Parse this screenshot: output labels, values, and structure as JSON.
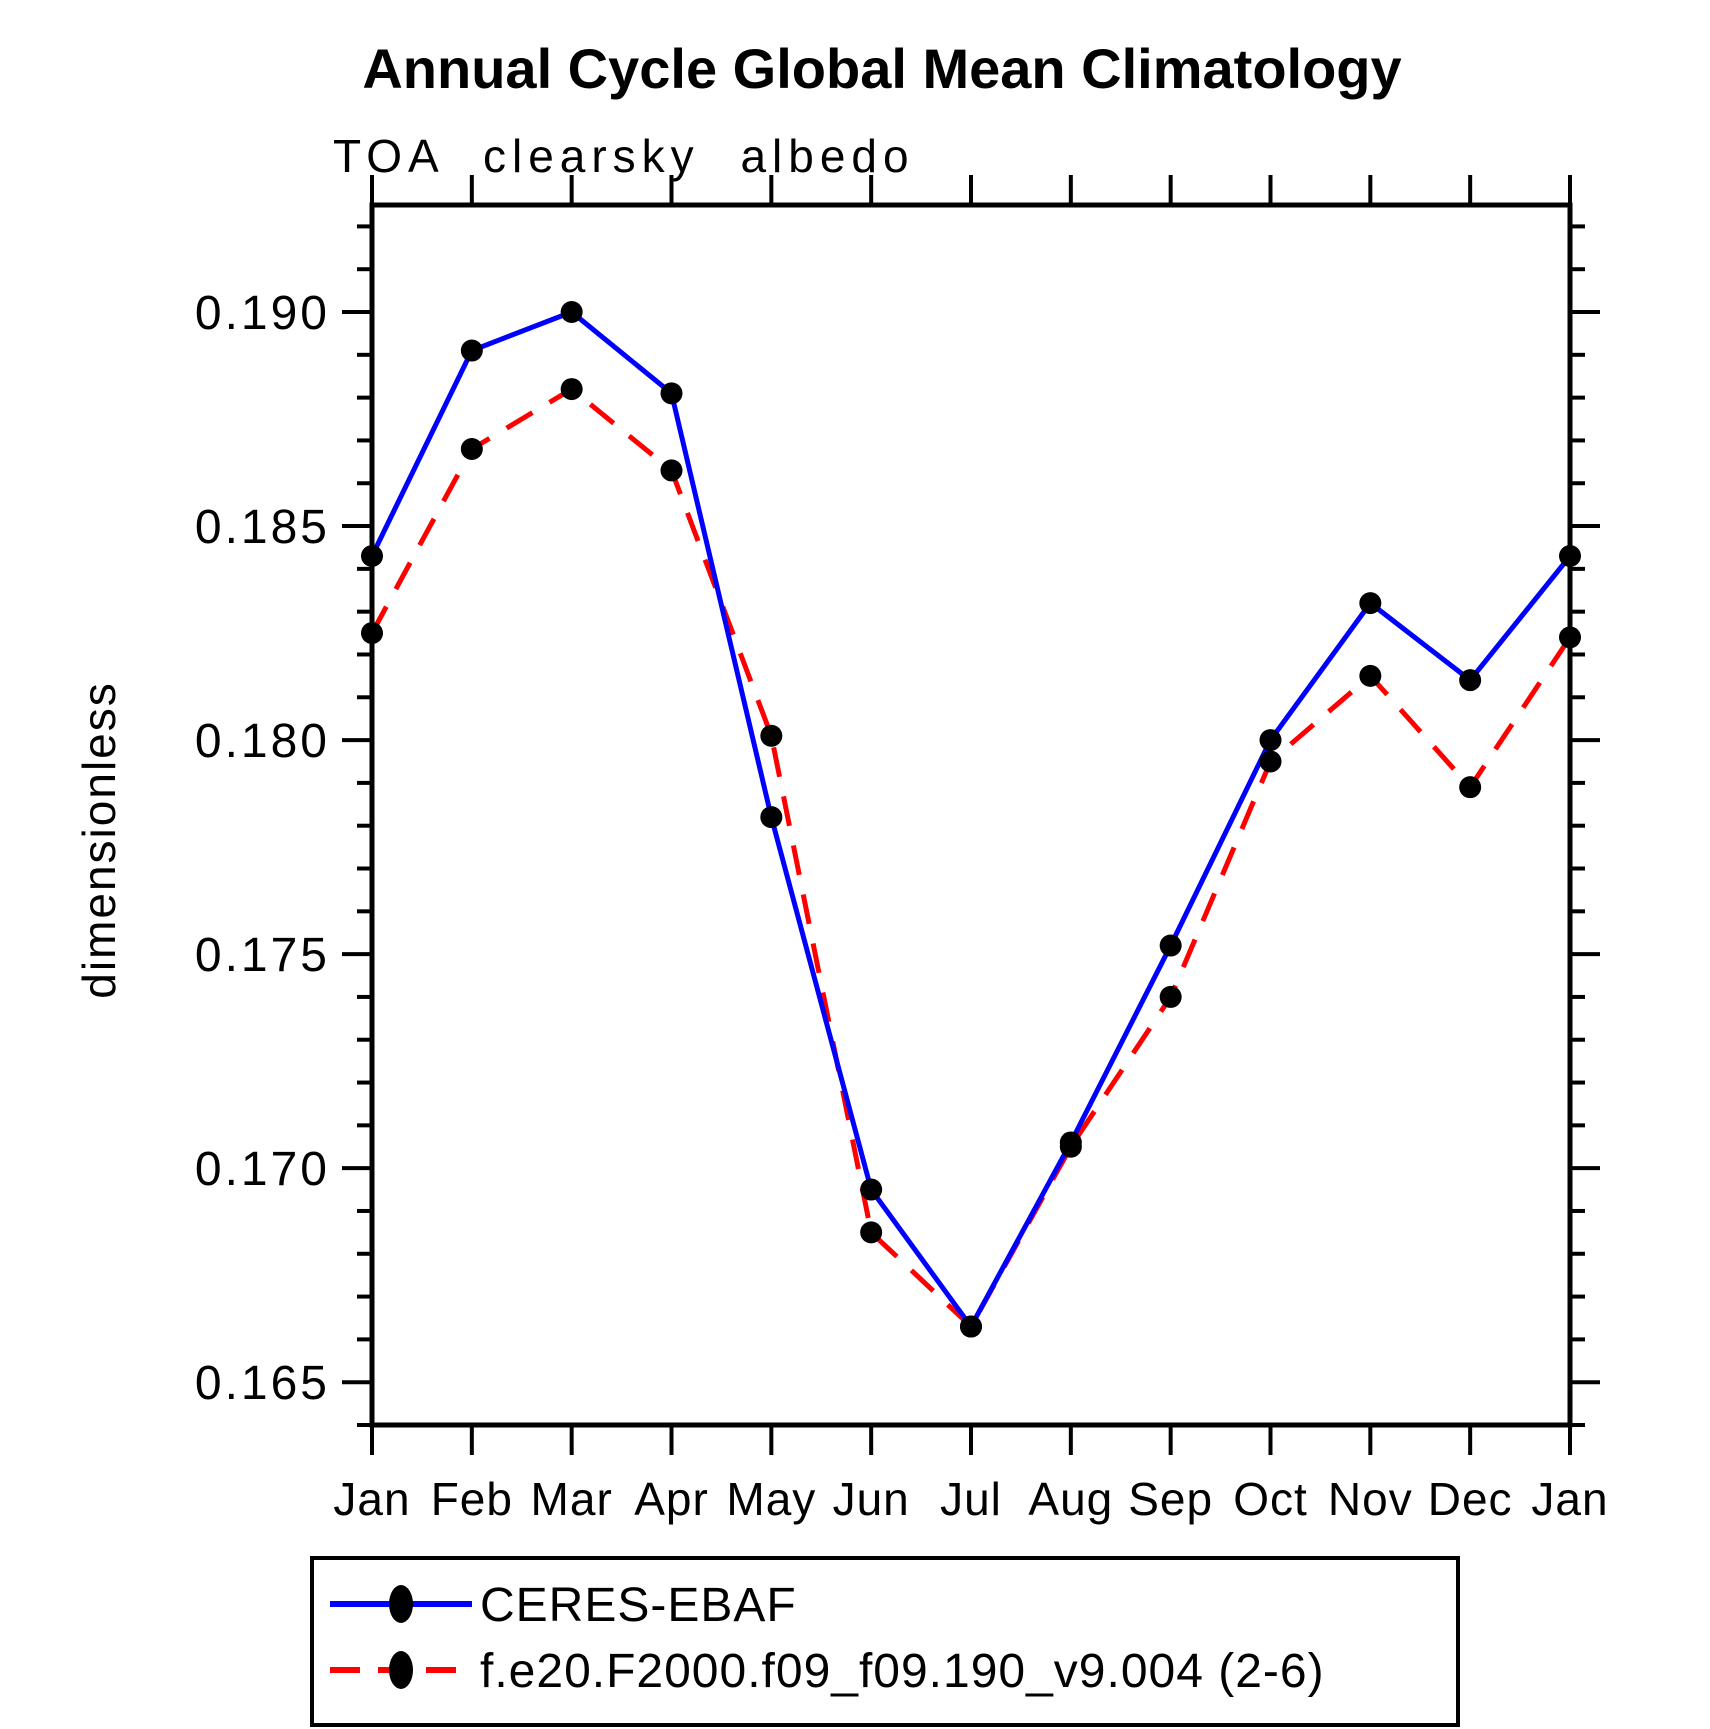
{
  "page_title": "Annual Cycle Global Mean Climatology",
  "chart_data": {
    "type": "line",
    "title": "Annual Cycle Global Mean Climatology",
    "subtitle": "TOA clearsky albedo",
    "xlabel": "",
    "ylabel": "dimensionless",
    "categories": [
      "Jan",
      "Feb",
      "Mar",
      "Apr",
      "May",
      "Jun",
      "Jul",
      "Aug",
      "Sep",
      "Oct",
      "Nov",
      "Dec",
      "Jan"
    ],
    "ylim": [
      0.164,
      0.1925
    ],
    "ytick_major": [
      0.165,
      0.17,
      0.175,
      0.18,
      0.185,
      0.19
    ],
    "ytick_labels": [
      "0.165",
      "0.170",
      "0.175",
      "0.180",
      "0.185",
      "0.190"
    ],
    "ytick_minor_step": 0.001,
    "grid": false,
    "legend_position": "bottom-left-box",
    "frame_color": "#000000",
    "marker_color": "#000000",
    "series": [
      {
        "name": "CERES-EBAF",
        "color": "#0000ff",
        "style": "solid",
        "marker": "circle",
        "values": [
          0.1843,
          0.1891,
          0.19,
          0.1881,
          0.1782,
          0.1695,
          0.1663,
          0.1706,
          0.1752,
          0.18,
          0.1832,
          0.1814,
          0.1843
        ]
      },
      {
        "name": "f.e20.F2000.f09_f09.190_v9.004 (2-6)",
        "color": "#ff0000",
        "style": "dashed",
        "marker": "circle",
        "values": [
          0.1825,
          0.1868,
          0.1882,
          0.1863,
          0.1801,
          0.1685,
          0.1663,
          0.1705,
          0.174,
          0.1795,
          0.1815,
          0.1789,
          0.1824
        ]
      }
    ]
  }
}
